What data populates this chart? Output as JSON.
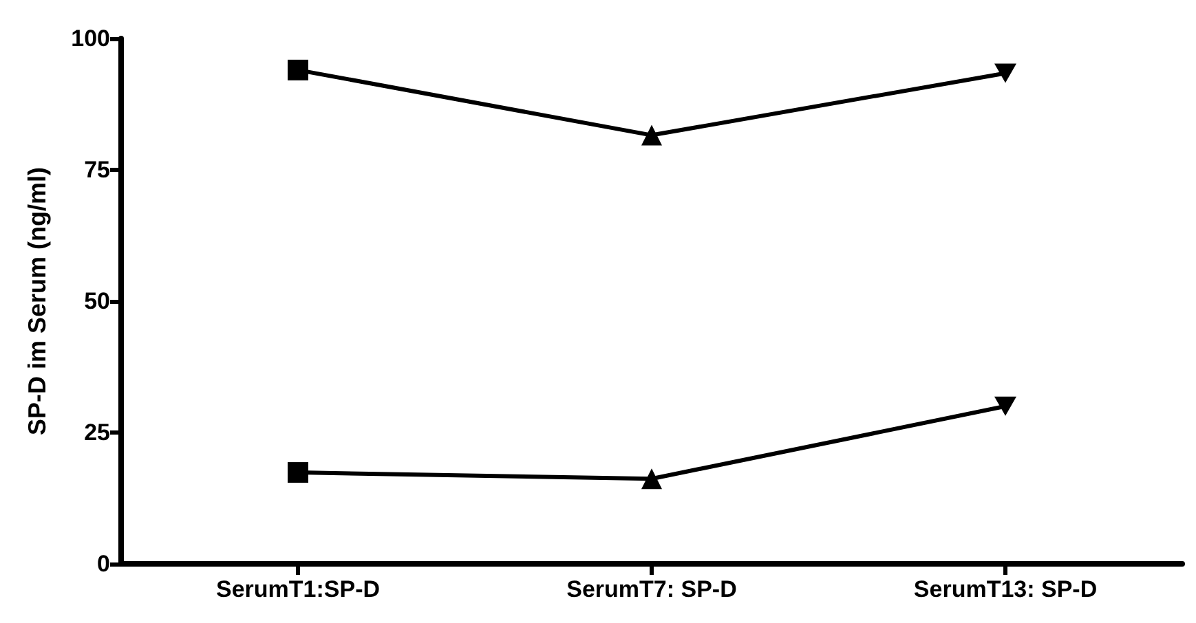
{
  "chart_data": {
    "type": "line",
    "ylabel": "SP-D im Serum (ng/ml)",
    "categories": [
      "SerumT1:SP-D",
      "SerumT7: SP-D",
      "SerumT13: SP-D"
    ],
    "series": [
      {
        "color": "#000000",
        "values": [
          94.0,
          81.6,
          93.4
        ]
      },
      {
        "color": "#000000",
        "values": [
          17.4,
          16.2,
          30.0
        ]
      }
    ],
    "marker": [
      "square",
      "triangle",
      "triangle-down"
    ],
    "ylim": [
      0,
      100
    ],
    "yticks": [
      0,
      25,
      50,
      75,
      100
    ],
    "grid": false,
    "line_style": "solid"
  }
}
